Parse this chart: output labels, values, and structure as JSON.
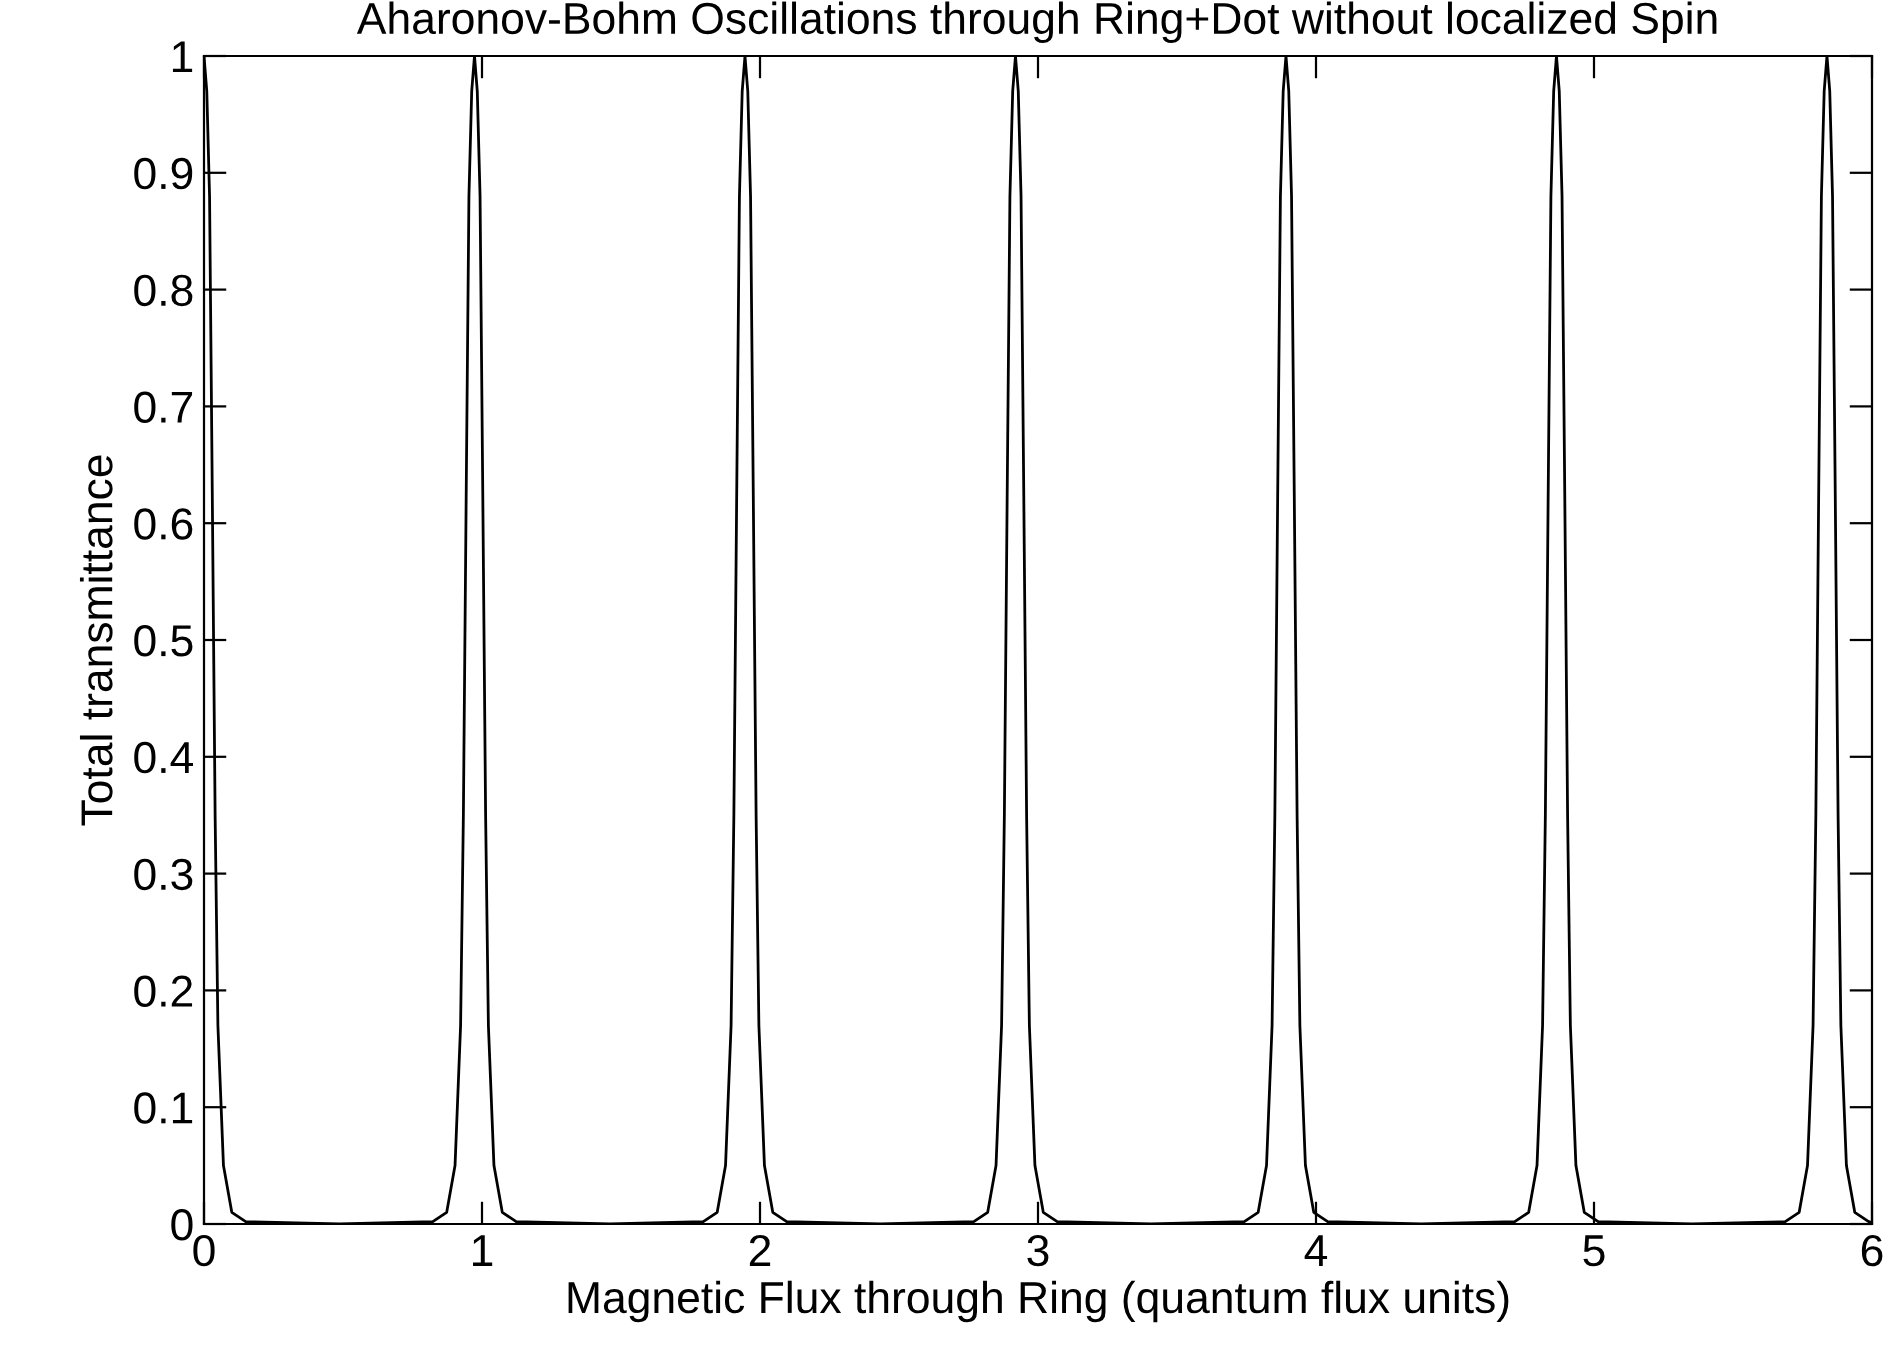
{
  "chart_data": {
    "type": "line",
    "title": "Aharonov-Bohm Oscillations through Ring+Dot without localized Spin",
    "xlabel": "Magnetic Flux through Ring (quantum flux units)",
    "ylabel": "Total transmittance",
    "xlim": [
      0,
      6
    ],
    "ylim": [
      0,
      1
    ],
    "xticks": [
      0,
      1,
      2,
      3,
      4,
      5,
      6
    ],
    "yticks": [
      0,
      0.1,
      0.2,
      0.3,
      0.4,
      0.5,
      0.6,
      0.7,
      0.8,
      0.9,
      1
    ],
    "grid": false,
    "series": [
      {
        "color": "#000000",
        "x": [
          0,
          0.01,
          0.02,
          0.03,
          0.04,
          0.05,
          0.07,
          0.1,
          0.15,
          0.487,
          0.823,
          0.873,
          0.903,
          0.923,
          0.933,
          0.943,
          0.953,
          0.963,
          0.973,
          0.983,
          0.993,
          1.003,
          1.013,
          1.023,
          1.043,
          1.073,
          1.123,
          1.46,
          1.796,
          1.846,
          1.876,
          1.896,
          1.906,
          1.916,
          1.926,
          1.936,
          1.946,
          1.956,
          1.966,
          1.976,
          1.986,
          1.996,
          2.016,
          2.046,
          2.096,
          2.433,
          2.769,
          2.819,
          2.849,
          2.869,
          2.879,
          2.889,
          2.899,
          2.909,
          2.919,
          2.929,
          2.939,
          2.949,
          2.959,
          2.969,
          2.989,
          3.019,
          3.069,
          3.406,
          3.742,
          3.792,
          3.822,
          3.842,
          3.852,
          3.862,
          3.872,
          3.882,
          3.892,
          3.902,
          3.912,
          3.922,
          3.932,
          3.942,
          3.962,
          3.992,
          4.042,
          4.379,
          4.715,
          4.765,
          4.795,
          4.815,
          4.825,
          4.835,
          4.845,
          4.855,
          4.865,
          4.875,
          4.885,
          4.895,
          4.905,
          4.915,
          4.935,
          4.965,
          5.015,
          5.352,
          5.688,
          5.738,
          5.768,
          5.788,
          5.798,
          5.808,
          5.818,
          5.828,
          5.838,
          5.848,
          5.858,
          5.868,
          5.878,
          5.888,
          5.908,
          5.938,
          5.988,
          6
        ],
        "values": [
          1,
          0.97,
          0.88,
          0.62,
          0.35,
          0.17,
          0.05,
          0.01,
          0.002,
          0,
          0.002,
          0.01,
          0.05,
          0.17,
          0.35,
          0.62,
          0.88,
          0.97,
          1,
          0.97,
          0.88,
          0.62,
          0.35,
          0.17,
          0.05,
          0.01,
          0.002,
          0,
          0.002,
          0.01,
          0.05,
          0.17,
          0.35,
          0.62,
          0.88,
          0.97,
          1,
          0.97,
          0.88,
          0.62,
          0.35,
          0.17,
          0.05,
          0.01,
          0.002,
          0,
          0.002,
          0.01,
          0.05,
          0.17,
          0.35,
          0.62,
          0.88,
          0.97,
          1,
          0.97,
          0.88,
          0.62,
          0.35,
          0.17,
          0.05,
          0.01,
          0.002,
          0,
          0.002,
          0.01,
          0.05,
          0.17,
          0.35,
          0.62,
          0.88,
          0.97,
          1,
          0.97,
          0.88,
          0.62,
          0.35,
          0.17,
          0.05,
          0.01,
          0.002,
          0,
          0.002,
          0.01,
          0.05,
          0.17,
          0.35,
          0.62,
          0.88,
          0.97,
          1,
          0.97,
          0.88,
          0.62,
          0.35,
          0.17,
          0.05,
          0.01,
          0.002,
          0,
          0.002,
          0.01,
          0.05,
          0.17,
          0.35,
          0.62,
          0.88,
          0.97,
          1,
          0.97,
          0.88,
          0.62,
          0.35,
          0.17,
          0.05,
          0.01,
          0.002,
          0.001
        ]
      }
    ]
  }
}
